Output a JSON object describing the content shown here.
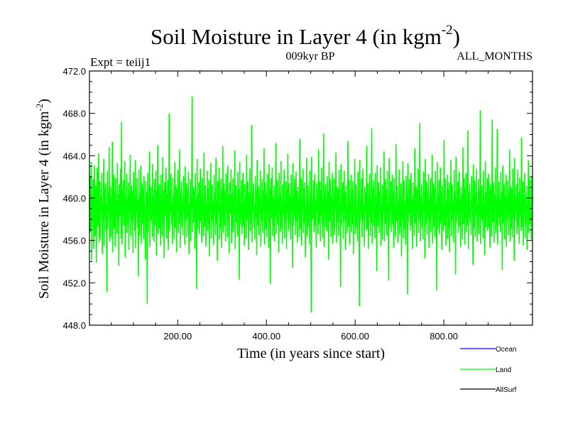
{
  "chart_data": {
    "type": "line",
    "title": "Soil Moisture in Layer 4 (in kgm",
    "title_superscript": "-2",
    "title_suffix": ")",
    "left_label": "Expt = teiij1",
    "center_label": "009kyr BP",
    "right_label": "ALL_MONTHS",
    "xlabel": "Time (in years since start)",
    "ylabel": "Soil Moisture in Layer 4 (in kgm",
    "ylabel_superscript": "-2",
    "ylabel_suffix": ")",
    "xlim": [
      1,
      1000
    ],
    "ylim": [
      448.0,
      472.0
    ],
    "x_ticks": [
      200,
      400,
      600,
      800
    ],
    "x_tick_labels": [
      "200.00",
      "400.00",
      "600.00",
      "800.00"
    ],
    "y_ticks": [
      448,
      452,
      456,
      460,
      464,
      468,
      472
    ],
    "y_tick_labels": [
      "448.0",
      "452.0",
      "456.0",
      "460.0",
      "464.0",
      "468.0",
      "472.0"
    ],
    "legend_position": "bottom-right, outside plot",
    "series": [
      {
        "name": "Ocean",
        "color": "#0000ff",
        "values": []
      },
      {
        "name": "Land",
        "color": "#00ff00",
        "values": [
          459.2,
          462.1,
          456.8,
          458.5,
          463.4,
          454.1,
          460.3,
          457.6,
          461.8,
          455.2,
          459.9,
          463.1,
          456.4,
          458.8,
          461.2,
          453.9,
          460.7,
          462.9,
          457.3,
          459.1,
          464.2,
          455.8,
          458.4,
          461.6,
          456.1,
          460.2,
          458.9,
          462.4,
          454.7,
          459.6,
          457.8,
          463.7,
          455.5,
          460.9,
          458.1,
          461.4,
          456.9,
          459.3,
          451.1,
          462.6,
          457.2,
          460.5,
          458.6,
          464.8,
          455.9,
          459.4,
          461.1,
          456.3,
          460.1,
          458.2,
          465.3,
          454.9,
          459.8,
          462.2,
          457.1,
          460.6,
          455.4,
          461.9,
          458.7,
          459.5,
          456.6,
          463.3,
          457.9,
          460.4,
          453.6,
          461.3,
          458.3,
          459.7,
          462.8,
          456.2,
          467.2,
          455.6,
          460.8,
          458.4,
          461.7,
          457.4,
          459.2,
          463.5,
          454.4,
          460.1,
          458.9,
          462.3,
          456.7,
          459.6,
          457.5,
          461.5,
          455.1,
          460.3,
          458.6,
          464.1,
          456.4,
          459.9,
          461.2,
          457.8,
          460.7,
          454.8,
          462.5,
          458.1,
          459.4,
          456.9,
          463.6,
          455.3,
          460.2,
          458.7,
          461.9,
          457.2,
          459.8,
          452.6,
          462.7,
          456.5,
          460.4,
          458.2,
          463.1,
          455.7,
          459.5,
          461.4,
          457.6,
          460.9,
          456.1,
          462.1,
          458.8,
          459.1,
          454.2,
          461.6,
          457.3,
          460.6,
          450.0,
          462.4,
          456.8,
          459.7,
          458.4,
          464.4,
          455.4,
          460.5,
          461.1,
          457.9,
          459.3,
          456.3,
          463.2,
          458.5,
          460.1,
          455.9,
          461.8,
          457.4,
          459.6,
          462.6,
          454.6,
          460.8,
          458.2,
          465.0,
          456.6,
          459.9,
          461.3,
          457.1,
          460.3,
          455.5,
          462.2,
          458.9,
          459.4,
          456.4,
          463.9,
          457.7,
          460.7,
          454.3,
          461.5,
          458.3,
          459.8,
          462.9,
          456.2,
          460.4,
          457.8,
          461.7,
          455.1,
          459.2,
          468.0,
          456.9,
          460.6,
          458.6,
          462.3,
          457.5,
          459.5,
          455.7,
          461.9,
          458.1,
          460.2,
          456.1,
          463.4,
          457.2,
          459.9,
          461.2,
          454.9,
          460.9,
          458.7,
          462.7,
          456.7,
          459.3,
          457.6,
          464.6,
          455.3,
          460.5,
          458.4,
          461.6,
          457.3,
          459.7,
          456.5,
          462.1,
          458.8,
          460.1,
          455.6,
          463.0,
          457.9,
          459.4,
          461.4,
          456.3,
          460.8,
          458.2,
          462.5,
          454.7,
          459.6,
          457.4,
          461.8,
          455.9,
          460.3,
          458.9,
          469.6,
          456.8,
          459.1,
          461.1,
          457.7,
          460.6,
          455.2,
          462.4,
          458.5,
          459.8,
          451.4,
          463.7,
          457.1,
          460.4,
          458.3,
          461.5,
          456.6,
          459.5,
          462.8,
          457.8,
          460.2,
          455.8,
          461.9,
          458.6,
          459.9,
          456.4,
          464.3,
          457.3,
          460.7,
          461.2,
          455.4,
          459.4,
          458.1,
          462.6,
          456.9,
          460.9,
          457.5,
          461.7,
          454.5,
          459.2,
          458.8,
          463.3,
          456.2,
          460.1,
          461.3,
          457.9,
          459.7,
          455.6,
          462.2,
          458.4,
          460.5,
          456.5,
          463.8,
          457.6,
          459.6,
          454.1,
          461.6,
          458.7,
          460.3,
          462.9,
          456.1,
          459.3,
          457.2,
          461.8,
          455.3,
          460.8,
          458.2,
          464.9,
          456.7,
          459.9,
          461.4,
          457.4,
          460.6,
          455.9,
          462.3,
          458.9,
          459.5,
          456.3,
          463.1,
          457.8,
          460.2,
          454.8,
          461.5,
          458.5,
          459.8,
          462.7,
          455.7,
          460.4,
          457.1,
          461.9,
          456.8,
          459.4,
          458.6,
          464.5,
          455.2,
          460.7,
          461.2,
          457.7,
          459.1,
          456.4,
          462.5,
          458.3,
          460.9,
          452.3,
          463.4,
          457.5,
          459.6,
          458.1,
          461.7,
          456.6,
          460.3,
          462.4,
          457.3,
          459.7,
          455.5,
          461.3,
          458.8,
          460.1,
          456.2,
          464.1,
          457.9,
          459.4,
          461.6,
          455.1,
          460.5,
          458.4,
          462.8,
          456.9,
          459.9,
          457.6,
          466.9,
          455.8,
          460.6,
          458.7,
          461.4,
          457.2,
          459.3,
          456.1,
          462.1,
          458.2,
          460.8,
          454.6,
          463.6,
          457.4,
          459.8,
          461.1,
          456.5,
          460.2,
          458.5,
          462.6,
          455.4,
          459.5,
          457.8,
          461.8,
          456.7,
          460.7,
          458.9,
          464.7,
          455.6,
          459.2,
          461.5,
          457.1,
          460.4,
          456.3,
          462.3,
          458.6,
          459.6,
          455.3,
          463.2,
          457.7,
          460.9,
          451.9,
          461.9,
          458.1,
          459.4,
          462.9,
          456.4,
          460.1,
          457.3,
          461.2,
          455.9,
          459.7,
          458.3,
          465.2,
          456.6,
          460.5,
          461.7,
          457.5,
          459.9,
          454.9,
          462.4,
          458.7,
          460.3,
          456.8,
          463.5,
          457.2,
          459.1,
          455.7,
          461.3,
          458.4,
          460.6,
          462.7,
          456.2,
          459.5,
          457.9,
          461.6,
          455.2,
          460.8,
          458.6,
          464.2,
          456.9,
          459.3,
          461.4,
          457.6,
          460.2,
          456.1,
          462.2,
          458.8,
          459.8,
          453.4,
          463.3,
          457.4,
          460.4,
          458.2,
          461.8,
          456.5,
          459.6,
          462.5,
          457.8,
          460.7,
          455.8,
          461.1,
          458.5,
          459.9,
          456.3,
          465.6,
          457.1,
          460.1,
          461.9,
          455.5,
          459.4,
          458.9,
          462.8,
          456.7,
          460.9,
          457.7,
          461.5,
          454.4,
          459.2,
          458.3,
          463.8,
          456.4,
          460.5,
          461.2,
          457.3,
          459.7,
          455.6,
          462.6,
          458.6,
          460.3,
          449.2,
          463.9,
          457.9,
          459.5,
          458.1,
          461.7,
          456.8,
          460.6,
          462.3,
          457.4,
          459.8,
          455.3,
          461.4,
          458.7,
          460.2,
          456.6,
          464.6,
          457.5,
          459.1,
          461.6,
          455.9,
          460.8,
          458.4,
          462.9,
          456.2,
          459.6,
          457.6,
          466.1,
          455.4,
          460.4,
          458.8,
          461.3,
          457.2,
          459.9,
          456.9,
          462.1,
          458.2,
          460.7,
          454.2,
          463.4,
          457.8,
          459.3,
          461.8,
          456.3,
          460.1,
          458.5,
          462.4,
          455.7,
          459.7,
          457.1,
          461.9,
          456.5,
          460.5,
          458.9,
          464.3,
          455.8,
          459.4,
          461.1,
          457.7,
          460.9,
          456.4,
          462.7,
          458.3,
          459.5,
          451.6,
          463.2,
          457.4,
          460.3,
          458.6,
          461.5,
          456.1,
          459.8,
          462.6,
          457.9,
          460.6,
          455.1,
          461.2,
          458.1,
          459.2,
          456.7,
          465.4,
          457.3,
          460.2,
          461.7,
          455.6,
          459.6,
          458.7,
          462.2,
          456.8,
          460.8,
          457.5,
          461.6,
          454.7,
          459.9,
          458.4,
          463.7,
          456.6,
          460.4,
          461.3,
          457.2,
          459.1,
          455.9,
          462.5,
          458.8,
          460.1,
          449.8,
          463.6,
          457.6,
          459.7,
          458.2,
          461.9,
          456.3,
          460.7,
          462.8,
          457.8,
          459.4,
          455.4,
          461.1,
          458.6,
          460.5,
          456.9,
          464.9,
          457.1,
          459.5,
          461.4,
          455.2,
          460.3,
          458.3,
          462.3,
          456.4,
          459.8,
          457.7,
          466.6,
          455.7,
          460.9,
          458.9,
          461.7,
          457.4,
          459.2,
          456.2,
          462.4,
          458.1,
          460.2,
          453.1,
          463.1,
          457.3,
          459.6,
          461.5,
          456.7,
          460.6,
          458.5,
          462.9,
          455.5,
          459.3,
          457.9,
          461.3,
          456.1,
          460.4,
          458.7,
          464.4,
          455.9,
          459.9,
          461.8,
          457.6,
          460.8,
          456.5,
          462.6,
          458.4,
          459.4,
          452.2,
          463.8,
          457.2,
          460.1,
          458.8,
          461.6,
          456.8,
          459.7,
          462.2,
          457.5,
          460.5,
          455.3,
          461.9,
          458.2,
          459.1,
          456.3,
          465.1,
          457.8,
          460.7,
          461.2,
          455.8,
          459.5,
          458.6,
          462.7,
          456.6,
          460.3,
          457.3,
          461.4,
          454.5,
          459.8,
          458.1,
          463.5,
          456.2,
          460.9,
          461.7,
          457.1,
          459.6,
          455.6,
          462.1,
          458.9,
          460.2,
          450.9,
          463.3,
          457.7,
          459.3,
          458.5,
          461.8,
          456.9,
          460.6,
          462.4,
          457.4,
          459.9,
          455.2,
          461.5,
          458.3,
          460.4,
          456.4,
          464.7,
          457.6,
          459.2,
          461.1,
          455.4,
          460.8,
          458.7,
          462.8,
          456.7,
          459.7,
          457.9,
          467.1,
          455.9,
          460.1,
          458.4,
          461.3,
          457.2,
          459.4,
          456.1,
          462.5,
          458.8,
          460.5,
          454.3,
          463.7,
          457.5,
          459.6,
          461.6,
          456.5,
          460.7,
          458.2,
          462.3,
          455.3,
          459.8,
          457.8,
          461.9,
          456.8,
          460.3,
          458.6,
          464.1,
          455.7,
          459.1,
          461.4,
          457.3,
          460.9,
          456.3,
          462.6,
          458.1,
          459.5,
          451.3,
          463.4,
          457.1,
          460.2,
          458.9,
          461.7,
          456.6,
          459.9,
          462.9,
          457.6,
          460.6,
          455.1,
          461.2,
          458.5,
          459.3,
          456.9,
          465.5,
          457.4,
          460.4,
          461.8,
          455.5,
          459.7,
          458.3,
          462.2,
          456.2,
          460.8,
          457.2,
          461.5,
          454.9,
          459.4,
          458.7,
          463.6,
          456.4,
          460.1,
          461.3,
          457.9,
          459.6,
          455.8,
          462.7,
          458.4,
          460.5,
          452.8,
          463.9,
          457.7,
          459.2,
          458.6,
          461.6,
          456.7,
          460.7,
          462.5,
          457.3,
          459.8,
          455.4,
          461.1,
          458.8,
          460.3,
          456.1,
          464.8,
          457.5,
          459.5,
          461.9,
          455.6,
          460.9,
          458.1,
          462.4,
          456.8,
          459.9,
          457.4,
          466.4,
          455.2,
          460.6,
          458.2,
          461.4,
          457.8,
          459.1,
          456.5,
          462.1,
          458.9,
          460.2,
          453.7,
          463.2,
          457.1,
          459.7,
          461.7,
          456.3,
          460.4,
          458.5,
          462.8,
          455.9,
          459.3,
          457.6,
          461.8,
          456.6,
          460.8,
          458.3,
          468.3,
          455.7,
          459.6,
          461.2,
          457.9,
          460.1,
          456.2,
          462.6,
          458.7,
          459.4,
          454.6,
          463.5,
          457.3,
          460.5,
          458.4,
          461.9,
          456.9,
          459.8,
          462.3,
          457.2,
          460.7,
          455.3,
          461.3,
          458.6,
          460.9,
          456.4,
          467.4,
          457.7,
          459.2,
          461.5,
          455.8,
          460.3,
          458.8,
          462.9,
          456.7,
          459.5,
          457.5,
          466.5,
          455.6,
          460.1,
          458.1,
          461.6,
          457.4,
          459.9,
          456.8,
          462.5,
          458.3,
          460.6,
          453.2,
          463.1,
          457.6,
          459.4,
          461.4,
          456.1,
          460.2,
          458.9,
          462.2,
          455.4,
          459.8,
          457.9,
          461.7,
          456.5,
          460.4,
          458.5,
          464.6,
          455.9,
          459.3,
          461.1,
          457.1,
          460.9,
          456.3,
          462.8,
          458.2,
          459.7,
          454.1,
          463.8,
          457.8,
          460.1,
          458.7,
          461.3,
          456.6,
          459.6,
          462.7,
          457.3,
          460.5,
          455.7,
          461.9,
          458.4,
          459.1,
          456.9,
          465.7,
          457.2,
          460.8,
          461.6,
          455.5,
          459.9,
          458.6,
          462.4,
          456.2,
          460.3,
          457.6,
          461.2,
          455.1,
          459.4,
          458.9,
          463.6,
          456.7,
          460.6,
          461.8,
          457.5,
          459.5,
          456.1,
          462.1,
          458.1,
          460.2
        ]
      },
      {
        "name": "AllSurf",
        "color": "#000000",
        "values": []
      }
    ]
  }
}
